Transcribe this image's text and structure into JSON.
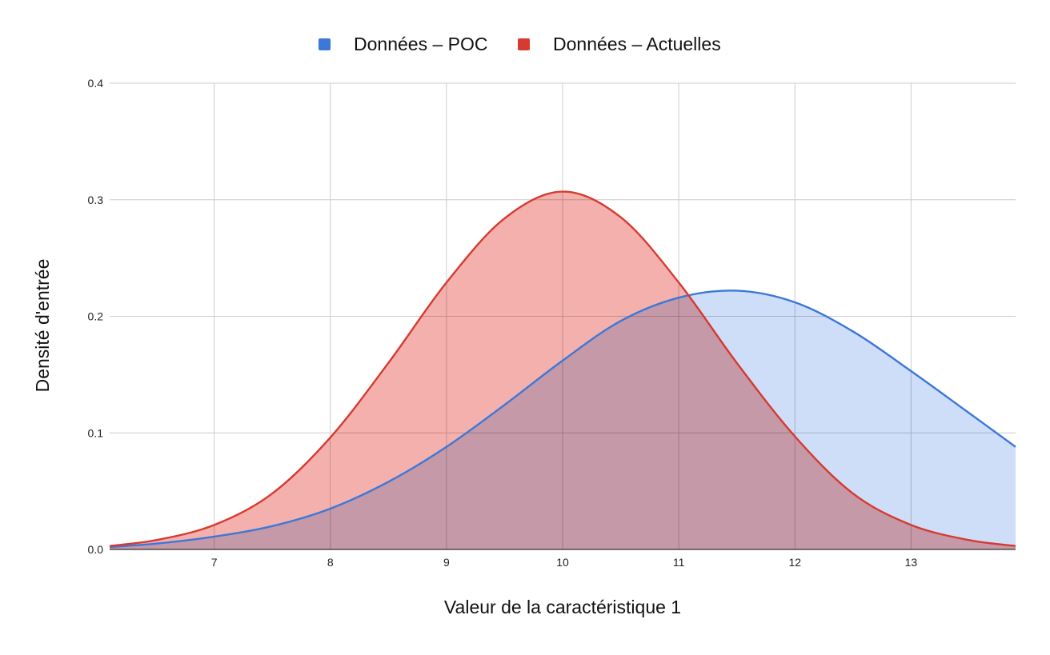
{
  "chart_data": {
    "type": "area",
    "title": "",
    "xlabel": "Valeur de la caractéristique 1",
    "ylabel": "Densité d'entrée",
    "xlim": [
      6.1,
      13.9
    ],
    "ylim": [
      0,
      0.4
    ],
    "x_ticks": [
      7,
      8,
      9,
      10,
      11,
      12,
      13
    ],
    "y_ticks": [
      0,
      0.1,
      0.2,
      0.3,
      0.4
    ],
    "x_tick_labels": [
      "7",
      "8",
      "9",
      "10",
      "11",
      "12",
      "13"
    ],
    "y_tick_labels": [
      "0.0",
      "0.1",
      "0.2",
      "0.3",
      "0.4"
    ],
    "grid": true,
    "legend_position": "top-center",
    "x": [
      6.1,
      6.5,
      7,
      7.5,
      8,
      8.5,
      9,
      9.5,
      10,
      10.5,
      11,
      11.5,
      12,
      12.5,
      13,
      13.5,
      13.9
    ],
    "series": [
      {
        "name": "Données – POC",
        "color": "#3c78d8",
        "fill": "#c6d8f7",
        "values": [
          0.002,
          0.005,
          0.011,
          0.02,
          0.035,
          0.058,
          0.088,
          0.124,
          0.162,
          0.196,
          0.216,
          0.222,
          0.212,
          0.187,
          0.153,
          0.117,
          0.088
        ]
      },
      {
        "name": "Données – Actuelles",
        "color": "#d73a30",
        "fill": "#f2a29d",
        "values": [
          0.003,
          0.008,
          0.021,
          0.048,
          0.096,
          0.16,
          0.229,
          0.284,
          0.307,
          0.285,
          0.229,
          0.16,
          0.097,
          0.048,
          0.021,
          0.008,
          0.003
        ]
      }
    ]
  }
}
